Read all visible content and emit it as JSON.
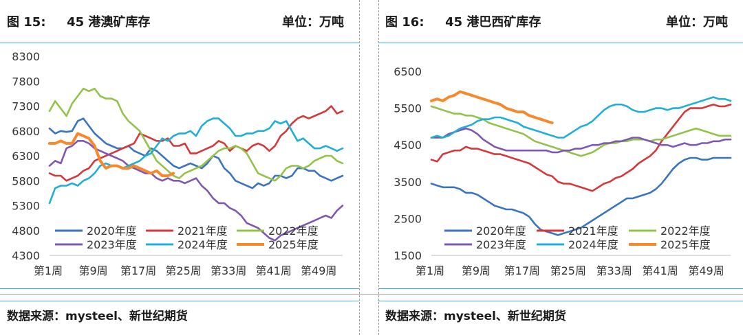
{
  "left": {
    "figure_no": "图  15:",
    "title": "45 港澳矿库存",
    "unit": "单位：万吨",
    "source": "数据来源：mysteel、新世纪期货"
  },
  "right": {
    "figure_no": "图  16:",
    "title": "45 港巴西矿库存",
    "unit": "单位：万吨",
    "source": "数据来源：mysteel、新世纪期货"
  },
  "colors": {
    "2020年度": "#3a74bf",
    "2021年度": "#d4383a",
    "2022年度": "#93c24a",
    "2023年度": "#8057b0",
    "2024年度": "#1fafd6",
    "2025年度": "#f7892a",
    "accent_rule": "#3fa4d6"
  },
  "chart_data": [
    {
      "type": "line",
      "title": "45 港澳矿库存",
      "unit": "单位：万吨",
      "ylim": [
        4300,
        8300
      ],
      "yticks": [
        4300,
        4800,
        5300,
        5800,
        6300,
        6800,
        7300,
        7800,
        8300
      ],
      "xlim": [
        1,
        53
      ],
      "xticks": [
        1,
        9,
        17,
        25,
        33,
        41,
        49
      ],
      "xtick_labels": [
        "第1周",
        "第9周",
        "第17周",
        "第25周",
        "第33周",
        "第41周",
        "第49周"
      ],
      "legend": "bottom-inside",
      "series": [
        {
          "name": "2020年度",
          "values": [
            6850,
            6750,
            6800,
            6780,
            6800,
            7000,
            7050,
            6900,
            6750,
            6650,
            6550,
            6500,
            6450,
            6450,
            6500,
            6400,
            6350,
            6300,
            6450,
            6400,
            6300,
            6200,
            6100,
            6050,
            6100,
            6150,
            6100,
            6050,
            6150,
            6300,
            6250,
            6050,
            5950,
            5800,
            5750,
            5700,
            5650,
            5750,
            5700,
            5750,
            5900,
            5900,
            5850,
            5900,
            6050,
            6050,
            6000,
            6000,
            5900,
            5850,
            5800,
            5850,
            5900
          ]
        },
        {
          "name": "2021年度",
          "values": [
            5950,
            5900,
            5900,
            5800,
            5850,
            5900,
            6000,
            6050,
            6200,
            6250,
            6300,
            6350,
            6400,
            6450,
            6500,
            6550,
            6750,
            6700,
            6650,
            6600,
            6600,
            6650,
            6500,
            6500,
            6550,
            6350,
            6350,
            6400,
            6450,
            6500,
            6600,
            6550,
            6400,
            6500,
            6450,
            6400,
            6500,
            6550,
            6500,
            6400,
            6500,
            6700,
            6800,
            6950,
            7050,
            7100,
            7050,
            7100,
            7150,
            7200,
            7300,
            7150,
            7200
          ]
        },
        {
          "name": "2022年度",
          "values": [
            7200,
            7400,
            7250,
            7100,
            7350,
            7500,
            7650,
            7600,
            7650,
            7500,
            7450,
            7450,
            7400,
            7150,
            7000,
            6900,
            6800,
            6600,
            6400,
            6200,
            6100,
            6000,
            5900,
            5850,
            5950,
            6000,
            6050,
            6100,
            6200,
            6300,
            6400,
            6450,
            6450,
            6500,
            6450,
            6350,
            6150,
            5950,
            5900,
            5850,
            5800,
            5900,
            6050,
            6100,
            6100,
            6050,
            6100,
            6200,
            6250,
            6300,
            6300,
            6200,
            6150
          ]
        },
        {
          "name": "2023年度",
          "values": [
            6100,
            6200,
            6150,
            6450,
            6500,
            6600,
            6600,
            6550,
            6450,
            6400,
            6350,
            6300,
            6250,
            6200,
            6100,
            6050,
            6000,
            5950,
            5950,
            5850,
            5800,
            5850,
            5800,
            5800,
            5750,
            5800,
            5850,
            5700,
            5600,
            5450,
            5350,
            5350,
            5250,
            5200,
            5100,
            4950,
            4900,
            4850,
            4750,
            4650,
            4600,
            4700,
            4750,
            4800,
            4850,
            4900,
            4950,
            5000,
            5050,
            5100,
            5050,
            5200,
            5300
          ]
        },
        {
          "name": "2024年度",
          "values": [
            5350,
            5650,
            5700,
            5700,
            5750,
            5700,
            5800,
            5850,
            5950,
            6100,
            6150,
            6100,
            6100,
            6050,
            6100,
            6150,
            6200,
            6300,
            6350,
            6500,
            6650,
            6600,
            6700,
            6750,
            6750,
            6800,
            6700,
            6900,
            7000,
            7050,
            7050,
            6950,
            6850,
            6700,
            6700,
            6750,
            6750,
            6800,
            6800,
            6850,
            7000,
            6950,
            7000,
            6800,
            6600,
            6650,
            6550,
            6450,
            6450,
            6500,
            6450,
            6400,
            6450
          ]
        },
        {
          "name": "2025年度",
          "values": [
            6550,
            6550,
            6600,
            6550,
            6550,
            6750,
            6700,
            6650,
            6500,
            6200,
            6050,
            6100,
            6100,
            6050,
            6050,
            6100,
            6050,
            6000,
            5950,
            6000,
            5900,
            5900,
            5950
          ]
        }
      ]
    },
    {
      "type": "line",
      "title": "45 港巴西矿库存",
      "unit": "单位：万吨",
      "ylim": [
        1500,
        6500
      ],
      "yticks": [
        1500,
        2500,
        3500,
        4500,
        5500,
        6500
      ],
      "xlim": [
        1,
        53
      ],
      "xticks": [
        1,
        9,
        17,
        25,
        33,
        41,
        49
      ],
      "xtick_labels": [
        "第1周",
        "第9周",
        "第17周",
        "第25周",
        "第33周",
        "第41周",
        "第49周"
      ],
      "legend": "bottom-inside",
      "series": [
        {
          "name": "2020年度",
          "values": [
            3450,
            3400,
            3350,
            3350,
            3350,
            3300,
            3200,
            3200,
            3150,
            3050,
            2950,
            2850,
            2800,
            2750,
            2750,
            2700,
            2650,
            2550,
            2350,
            2200,
            2150,
            2100,
            2050,
            2100,
            2150,
            2200,
            2250,
            2350,
            2450,
            2550,
            2650,
            2750,
            2850,
            2950,
            3050,
            3050,
            3100,
            3150,
            3200,
            3300,
            3450,
            3650,
            3850,
            4000,
            4100,
            4150,
            4150,
            4100,
            4100,
            4150,
            4150,
            4150,
            4150
          ]
        },
        {
          "name": "2021年度",
          "values": [
            4100,
            4050,
            4250,
            4300,
            4350,
            4350,
            4450,
            4400,
            4400,
            4350,
            4300,
            4250,
            4250,
            4200,
            4150,
            4100,
            4050,
            4000,
            3900,
            3800,
            3700,
            3650,
            3500,
            3450,
            3450,
            3400,
            3350,
            3300,
            3250,
            3350,
            3450,
            3500,
            3600,
            3650,
            3750,
            3850,
            4000,
            4100,
            4200,
            4350,
            4600,
            4800,
            5000,
            5200,
            5400,
            5500,
            5500,
            5500,
            5550,
            5600,
            5550,
            5550,
            5600
          ]
        },
        {
          "name": "2022年度",
          "values": [
            5550,
            5500,
            5450,
            5400,
            5350,
            5350,
            5300,
            5300,
            5250,
            5200,
            5100,
            5050,
            5000,
            4950,
            4900,
            4850,
            4800,
            4700,
            4600,
            4550,
            4500,
            4450,
            4400,
            4350,
            4300,
            4250,
            4200,
            4250,
            4300,
            4400,
            4500,
            4550,
            4550,
            4600,
            4600,
            4650,
            4650,
            4650,
            4600,
            4650,
            4650,
            4700,
            4750,
            4800,
            4850,
            4900,
            4950,
            4900,
            4850,
            4800,
            4750,
            4750,
            4750
          ]
        },
        {
          "name": "2023年度",
          "values": [
            4700,
            4700,
            4700,
            4800,
            4850,
            4900,
            4950,
            4900,
            4800,
            4650,
            4550,
            4450,
            4400,
            4350,
            4350,
            4350,
            4350,
            4350,
            4350,
            4350,
            4350,
            4300,
            4300,
            4350,
            4350,
            4400,
            4400,
            4450,
            4500,
            4500,
            4550,
            4550,
            4600,
            4600,
            4650,
            4700,
            4700,
            4650,
            4600,
            4550,
            4500,
            4500,
            4450,
            4500,
            4550,
            4500,
            4500,
            4550,
            4550,
            4600,
            4600,
            4650,
            4650
          ]
        },
        {
          "name": "2024年度",
          "values": [
            4700,
            4750,
            4700,
            4750,
            4850,
            4950,
            5000,
            5050,
            5150,
            5200,
            5200,
            5250,
            5250,
            5200,
            5150,
            5100,
            5000,
            4950,
            4900,
            4850,
            4800,
            4750,
            4700,
            4700,
            4800,
            4900,
            5000,
            5050,
            5150,
            5300,
            5450,
            5550,
            5600,
            5600,
            5550,
            5450,
            5400,
            5400,
            5450,
            5500,
            5500,
            5450,
            5500,
            5500,
            5550,
            5600,
            5650,
            5700,
            5750,
            5800,
            5750,
            5750,
            5700
          ]
        },
        {
          "name": "2025年度",
          "values": [
            5700,
            5750,
            5700,
            5800,
            5850,
            5950,
            5900,
            5850,
            5800,
            5750,
            5700,
            5650,
            5600,
            5500,
            5450,
            5400,
            5400,
            5300,
            5250,
            5200,
            5150,
            5100
          ]
        }
      ]
    }
  ]
}
